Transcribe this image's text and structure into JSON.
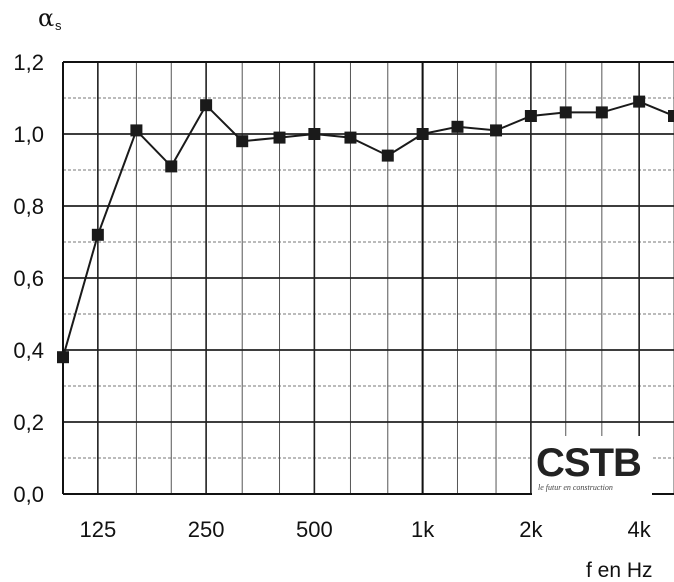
{
  "chart_data": {
    "type": "line",
    "ylabel": "α",
    "ylabel_subscript": "s",
    "xlabel": "f en Hz",
    "x_scale": "log",
    "ylim": [
      0.0,
      1.2
    ],
    "y_ticks": [
      "0,0",
      "0,2",
      "0,4",
      "0,6",
      "0,8",
      "1,0",
      "1,2"
    ],
    "y_tick_values": [
      0.0,
      0.2,
      0.4,
      0.6,
      0.8,
      1.0,
      1.2
    ],
    "x_tick_labels": [
      "125",
      "250",
      "500",
      "1k",
      "2k",
      "4k"
    ],
    "x_tick_values": [
      125,
      250,
      500,
      1000,
      2000,
      4000
    ],
    "xlim": [
      100,
      5000
    ],
    "grid": true,
    "series": [
      {
        "x": [
          100,
          125,
          160,
          200,
          250,
          315,
          400,
          500,
          630,
          800,
          1000,
          1250,
          1600,
          2000,
          2500,
          3150,
          4000,
          5000
        ],
        "values": [
          0.38,
          0.72,
          1.01,
          0.91,
          1.08,
          0.98,
          0.99,
          1.0,
          0.99,
          0.94,
          1.0,
          1.02,
          1.01,
          1.05,
          1.06,
          1.06,
          1.09,
          1.05
        ],
        "marker": "square",
        "color": "#1a1a1a"
      }
    ]
  },
  "logo": {
    "text": "CSTB",
    "tagline": "le futur en construction"
  }
}
